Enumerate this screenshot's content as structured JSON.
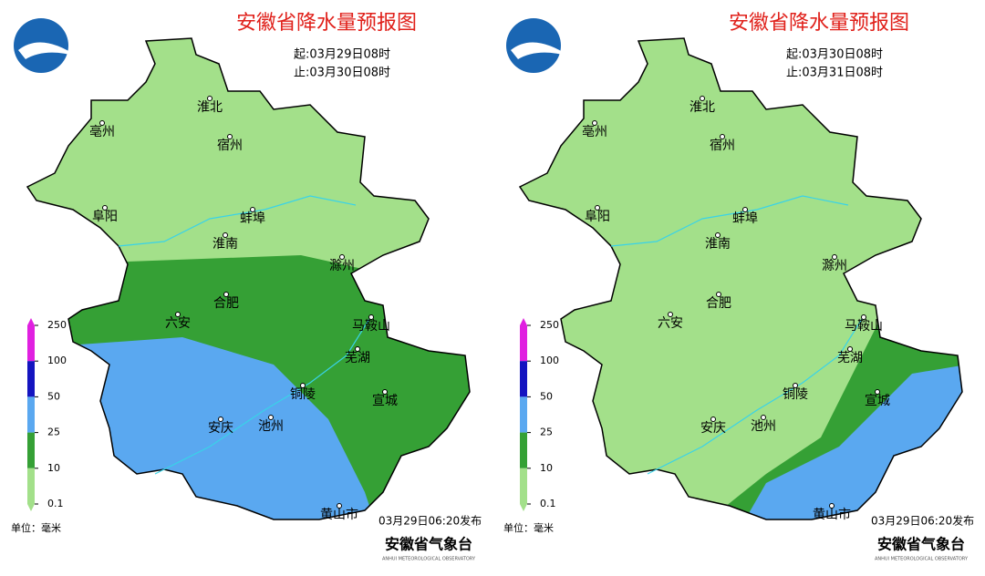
{
  "panels": [
    {
      "title": "安徽省降水量预报图",
      "start": "起:03月29日08时",
      "end": "止:03月30日08时",
      "cities": [
        "淮北",
        "宿州",
        "亳州",
        "阜阳",
        "蚌埠",
        "淮南",
        "滁州",
        "合肥",
        "六安",
        "马鞍山",
        "芜湖",
        "铜陵",
        "宣城",
        "安庆",
        "池州",
        "黄山市"
      ],
      "legend": {
        "ticks": [
          250,
          100,
          50,
          25,
          10,
          0.1
        ],
        "colors": [
          "#e020e0",
          "#1414c0",
          "#5aa8f0",
          "#35a035",
          "#a3e08a"
        ]
      },
      "unit": "单位：毫米",
      "issued": "03月29日06:20发布",
      "publisher": "安徽省气象台",
      "publisher_en": "ANHUI METEOROLOGICAL OBSERVATORY"
    },
    {
      "title": "安徽省降水量预报图",
      "start": "起:03月30日08时",
      "end": "止:03月31日08时",
      "cities": [
        "淮北",
        "宿州",
        "亳州",
        "阜阳",
        "蚌埠",
        "淮南",
        "滁州",
        "合肥",
        "六安",
        "马鞍山",
        "芜湖",
        "铜陵",
        "宣城",
        "安庆",
        "池州",
        "黄山市"
      ],
      "legend": {
        "ticks": [
          250,
          100,
          50,
          25,
          10,
          0.1
        ],
        "colors": [
          "#e020e0",
          "#1414c0",
          "#5aa8f0",
          "#35a035",
          "#a3e08a"
        ]
      },
      "unit": "单位：毫米",
      "issued": "03月29日06:20发布",
      "publisher": "安徽省气象台",
      "publisher_en": "ANHUI METEOROLOGICAL OBSERVATORY"
    }
  ]
}
